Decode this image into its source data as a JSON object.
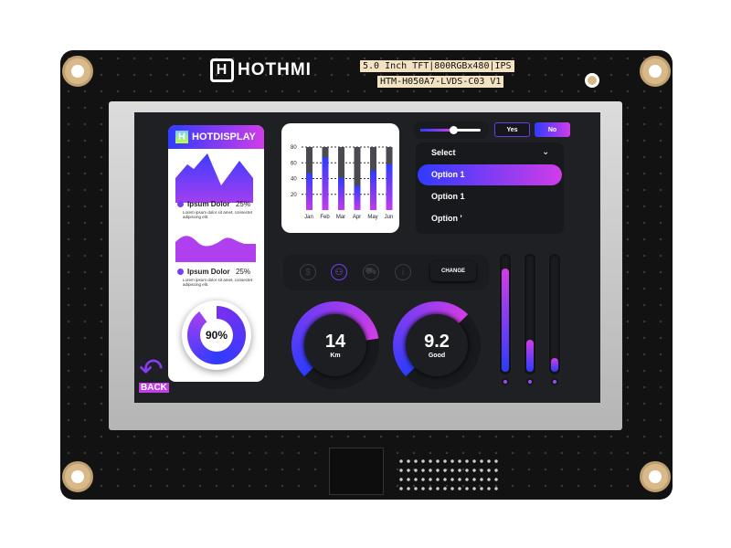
{
  "board": {
    "brand": "HOTHMI",
    "spec_label": "5.0 Inch TFT|800RGBx480|IPS",
    "model_label": "HTM-H050A7-LVDS-C03 V1"
  },
  "left_card": {
    "title": "HOTDISPLAY",
    "item1": {
      "label": "Ipsum Dolor",
      "value": "25%",
      "desc": "Lorem ipsum dolor sit amet, consectet adipiscing elit."
    },
    "item2": {
      "label": "Ipsum Dolor",
      "value": "25%",
      "desc": "Lorem ipsum dolor sit amet, consectet adipiscing elit."
    },
    "ring": {
      "label": "90%",
      "value": 90
    }
  },
  "chart_data": {
    "type": "bar",
    "categories": [
      "Jan",
      "Feb",
      "Mar",
      "Apr",
      "May",
      "Jun"
    ],
    "values": [
      47,
      67,
      41,
      31,
      50,
      58
    ],
    "ylim": [
      0,
      80
    ],
    "yticks": [
      20,
      40,
      60,
      80
    ],
    "grid": true
  },
  "controls": {
    "slider_value": 0.55,
    "yes_label": "Yes",
    "no_label": "No"
  },
  "dropdown": {
    "placeholder": "Select",
    "options": [
      "Option 1",
      "Option 1",
      "Option '"
    ],
    "selected_index": 0
  },
  "icon_bar": {
    "icons": [
      "dollar-icon",
      "user-icon",
      "cart-icon",
      "info-icon"
    ],
    "active": "user-icon",
    "change_label": "CHANGE"
  },
  "gauges": [
    {
      "value": "14",
      "unit": "Km",
      "fraction": 0.6
    },
    {
      "value": "9.2",
      "unit": "Good",
      "fraction": 0.5
    }
  ],
  "vertical_sliders": [
    0.9,
    0.28,
    0.12
  ],
  "back": {
    "label": "BACK"
  },
  "colors": {
    "accent_start": "#2c3cff",
    "accent_end": "#d23de6",
    "screen_bg": "#1f2023"
  }
}
